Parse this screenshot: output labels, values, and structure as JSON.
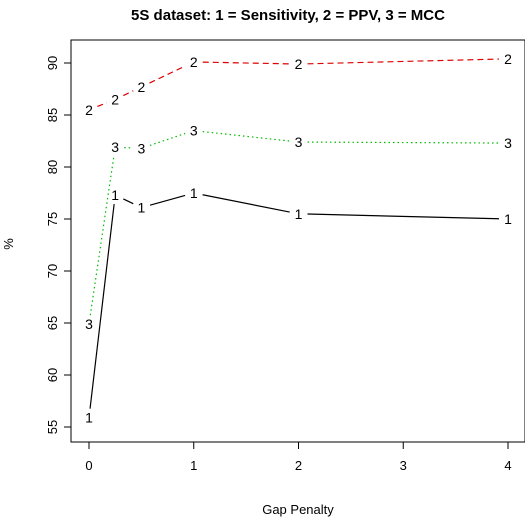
{
  "chart_data": {
    "type": "line",
    "title": "5S dataset: 1 = Sensitivity, 2 = PPV, 3 = MCC",
    "xlabel": "Gap Penalty",
    "ylabel": "%",
    "xlim": [
      0,
      4
    ],
    "ylim": [
      55,
      90
    ],
    "xticks": [
      "0",
      "1",
      "2",
      "3",
      "4"
    ],
    "yticks": [
      "55",
      "60",
      "65",
      "70",
      "75",
      "80",
      "85",
      "90"
    ],
    "grid": false,
    "legend": "none",
    "x": [
      0,
      0.25,
      0.5,
      1,
      2,
      4
    ],
    "series": [
      {
        "marker": "1",
        "color": "#000000",
        "linestyle": "solid",
        "values": [
          55.9,
          77.3,
          76.1,
          77.5,
          75.5,
          75.0
        ]
      },
      {
        "marker": "2",
        "color": "#dd0000",
        "linestyle": "dashed",
        "values": [
          85.5,
          86.5,
          87.7,
          90.1,
          89.9,
          90.4
        ]
      },
      {
        "marker": "3",
        "color": "#00bb00",
        "linestyle": "dotted",
        "values": [
          64.9,
          81.9,
          81.8,
          83.5,
          82.4,
          82.3
        ]
      }
    ]
  }
}
